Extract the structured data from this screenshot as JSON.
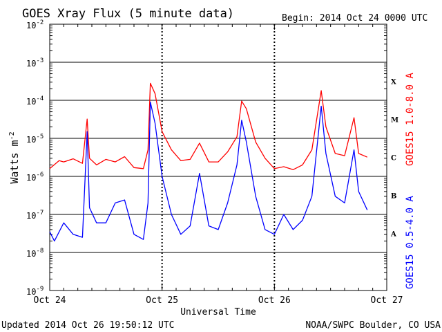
{
  "title": "GOES Xray Flux (5 minute data)",
  "begin": "Begin:  2014 Oct 24 0000 UTC",
  "footer_left": "Updated 2014 Oct 26 19:50:12 UTC",
  "footer_right": "NOAA/SWPC Boulder, CO USA",
  "xlabel": "Universal Time",
  "ylabel_base": "Watts m",
  "ylabel_exp": "-2",
  "class_labels": [
    "X",
    "M",
    "C",
    "B",
    "A"
  ],
  "colors": {
    "long": "#ff0000",
    "short": "#0000ff",
    "axis": "#000000"
  },
  "chart_data": {
    "type": "line",
    "log_scale_y": true,
    "ylim": [
      1e-09,
      0.01
    ],
    "y_ticks": [
      {
        "base": "10",
        "exp": "-2"
      },
      {
        "base": "10",
        "exp": "-3"
      },
      {
        "base": "10",
        "exp": "-4"
      },
      {
        "base": "10",
        "exp": "-5"
      },
      {
        "base": "10",
        "exp": "-6"
      },
      {
        "base": "10",
        "exp": "-7"
      },
      {
        "base": "10",
        "exp": "-8"
      },
      {
        "base": "10",
        "exp": "-9"
      }
    ],
    "x_ticks": [
      "Oct 24",
      "Oct 25",
      "Oct 26",
      "Oct 27"
    ],
    "grid": "horizontal",
    "series": [
      {
        "name": "GOES15 1.0-8.0 A",
        "color": "#ff0000",
        "points": [
          [
            "2014-10-24 00:00",
            1.6e-06
          ],
          [
            "2014-10-24 02:00",
            2.6e-06
          ],
          [
            "2014-10-24 03:00",
            2.4e-06
          ],
          [
            "2014-10-24 05:00",
            2.9e-06
          ],
          [
            "2014-10-24 07:00",
            2.2e-06
          ],
          [
            "2014-10-24 08:00",
            3.2e-05
          ],
          [
            "2014-10-24 08:30",
            3e-06
          ],
          [
            "2014-10-24 10:00",
            2e-06
          ],
          [
            "2014-10-24 12:00",
            2.8e-06
          ],
          [
            "2014-10-24 14:00",
            2.4e-06
          ],
          [
            "2014-10-24 16:00",
            3.3e-06
          ],
          [
            "2014-10-24 18:00",
            1.7e-06
          ],
          [
            "2014-10-24 20:00",
            1.6e-06
          ],
          [
            "2014-10-24 21:00",
            5e-06
          ],
          [
            "2014-10-24 21:30",
            0.00028
          ],
          [
            "2014-10-24 22:30",
            0.00015
          ],
          [
            "2014-10-25 00:00",
            1.5e-05
          ],
          [
            "2014-10-25 02:00",
            5e-06
          ],
          [
            "2014-10-25 04:00",
            2.6e-06
          ],
          [
            "2014-10-25 06:00",
            2.8e-06
          ],
          [
            "2014-10-25 08:00",
            7.5e-06
          ],
          [
            "2014-10-25 10:00",
            2.4e-06
          ],
          [
            "2014-10-25 12:00",
            2.4e-06
          ],
          [
            "2014-10-25 14:00",
            4.4e-06
          ],
          [
            "2014-10-25 16:00",
            1.1e-05
          ],
          [
            "2014-10-25 17:00",
            9.5e-05
          ],
          [
            "2014-10-25 18:00",
            6e-05
          ],
          [
            "2014-10-25 20:00",
            8e-06
          ],
          [
            "2014-10-25 22:00",
            3e-06
          ],
          [
            "2014-10-26 00:00",
            1.6e-06
          ],
          [
            "2014-10-26 02:00",
            1.8e-06
          ],
          [
            "2014-10-26 04:00",
            1.5e-06
          ],
          [
            "2014-10-26 06:00",
            2e-06
          ],
          [
            "2014-10-26 08:00",
            5e-06
          ],
          [
            "2014-10-26 10:00",
            0.00018
          ],
          [
            "2014-10-26 11:00",
            2e-05
          ],
          [
            "2014-10-26 13:00",
            4e-06
          ],
          [
            "2014-10-26 15:00",
            3.5e-06
          ],
          [
            "2014-10-26 17:00",
            3.5e-05
          ],
          [
            "2014-10-26 18:00",
            4e-06
          ],
          [
            "2014-10-26 19:50",
            3.2e-06
          ]
        ]
      },
      {
        "name": "GOES15 0.5-4.0 A",
        "color": "#0000ff",
        "points": [
          [
            "2014-10-24 00:00",
            3.5e-08
          ],
          [
            "2014-10-24 01:00",
            2e-08
          ],
          [
            "2014-10-24 03:00",
            6e-08
          ],
          [
            "2014-10-24 05:00",
            3e-08
          ],
          [
            "2014-10-24 07:00",
            2.5e-08
          ],
          [
            "2014-10-24 08:00",
            1.5e-05
          ],
          [
            "2014-10-24 08:30",
            1.5e-07
          ],
          [
            "2014-10-24 10:00",
            6e-08
          ],
          [
            "2014-10-24 12:00",
            6e-08
          ],
          [
            "2014-10-24 14:00",
            2e-07
          ],
          [
            "2014-10-24 16:00",
            2.4e-07
          ],
          [
            "2014-10-24 18:00",
            3e-08
          ],
          [
            "2014-10-24 20:00",
            2.2e-08
          ],
          [
            "2014-10-24 21:00",
            2e-07
          ],
          [
            "2014-10-24 21:30",
            9e-05
          ],
          [
            "2014-10-24 22:30",
            2.5e-05
          ],
          [
            "2014-10-25 00:00",
            1e-06
          ],
          [
            "2014-10-25 02:00",
            1e-07
          ],
          [
            "2014-10-25 04:00",
            3e-08
          ],
          [
            "2014-10-25 06:00",
            5e-08
          ],
          [
            "2014-10-25 08:00",
            1.2e-06
          ],
          [
            "2014-10-25 10:00",
            5e-08
          ],
          [
            "2014-10-25 12:00",
            4e-08
          ],
          [
            "2014-10-25 14:00",
            2e-07
          ],
          [
            "2014-10-25 16:00",
            2e-06
          ],
          [
            "2014-10-25 17:00",
            3e-05
          ],
          [
            "2014-10-25 18:00",
            8e-06
          ],
          [
            "2014-10-25 20:00",
            3e-07
          ],
          [
            "2014-10-25 22:00",
            4e-08
          ],
          [
            "2014-10-26 00:00",
            3e-08
          ],
          [
            "2014-10-26 02:00",
            1e-07
          ],
          [
            "2014-10-26 04:00",
            4e-08
          ],
          [
            "2014-10-26 06:00",
            7e-08
          ],
          [
            "2014-10-26 08:00",
            3e-07
          ],
          [
            "2014-10-26 10:00",
            7e-05
          ],
          [
            "2014-10-26 11:00",
            4e-06
          ],
          [
            "2014-10-26 13:00",
            3e-07
          ],
          [
            "2014-10-26 15:00",
            2e-07
          ],
          [
            "2014-10-26 17:00",
            5e-06
          ],
          [
            "2014-10-26 18:00",
            4e-07
          ],
          [
            "2014-10-26 19:50",
            1.3e-07
          ]
        ]
      }
    ]
  }
}
